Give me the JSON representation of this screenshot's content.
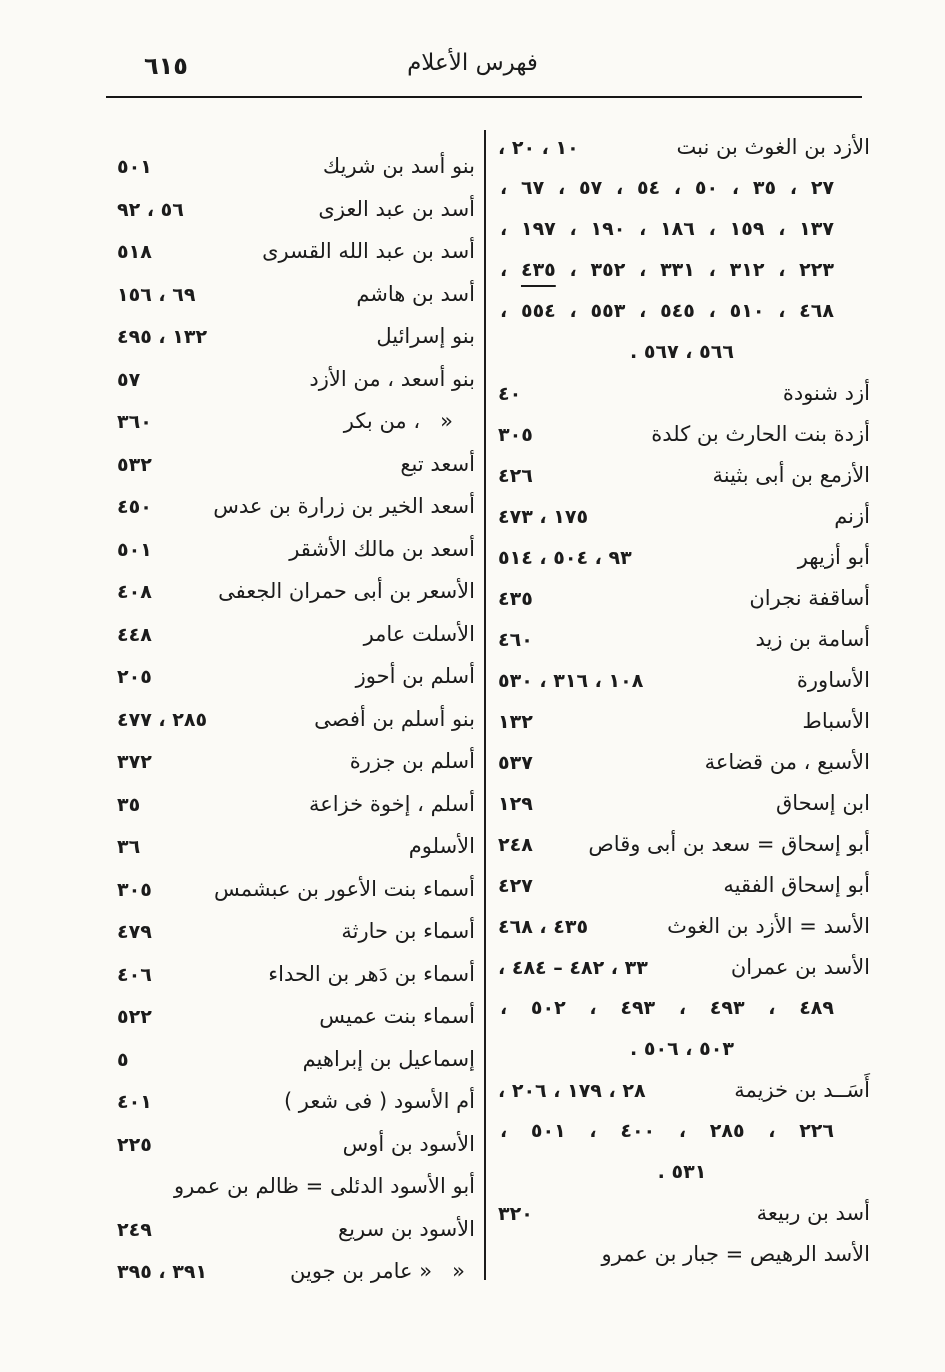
{
  "page": {
    "number": "٦١٥",
    "title": "فهرس الأعلام"
  },
  "index": {
    "right_column": [
      {
        "name": "الأزد بن الغوث بن نبت",
        "pages": "١٠ ، ٢٠ ،"
      },
      {
        "numbers": "٢٧ ، ٣٥ ، ٥٠ ، ٥٤ ، ٥٧ ، ٦٧ ،"
      },
      {
        "numbers": "١٣٧ ، ١٥٩ ، ١٨٦ ، ١٩٠ ، ١٩٧ ،"
      },
      {
        "segments": [
          {
            "t": "٢٢٣ ، ٣١٢ ، ٣٣١ ، ٣٥٢ ، "
          },
          {
            "t": "٤٣٥",
            "u": true
          },
          {
            "t": " ،"
          }
        ]
      },
      {
        "numbers": "٤٦٨ ، ٥١٠ ، ٥٤٥ ، ٥٥٣ ، ٥٥٤ ،"
      },
      {
        "numbers_end": "٥٦٦ ، ٥٦٧ ."
      },
      {
        "name": "أزد شنودة",
        "pages": "٤٠"
      },
      {
        "name": "أزدة بنت الحارث بن كلدة",
        "pages": "٣٠٥"
      },
      {
        "name": "الأزمع بن أبى بثينة",
        "pages": "٤٢٦"
      },
      {
        "name": "أزنم",
        "pages": "١٧٥ ، ٤٧٣"
      },
      {
        "name": "أبو أزيهر",
        "pages": "٩٣ ، ٥٠٤ ، ٥١٤"
      },
      {
        "name": "أساقفة نجران",
        "pages": "٤٣٥"
      },
      {
        "name": "أسامة بن زيد",
        "pages": "٤٦٠"
      },
      {
        "name": "الأساورة",
        "pages": "١٠٨ ، ٣١٦ ، ٥٣٠"
      },
      {
        "name": "الأسباط",
        "pages": "١٣٢"
      },
      {
        "name": "الأسبع ، من قضاعة",
        "pages": "٥٣٧"
      },
      {
        "name": "ابن إسحاق",
        "pages": "١٢٩"
      },
      {
        "name": "أبو إسحاق = سعد بن أبى وقاص",
        "pages": "٢٤٨"
      },
      {
        "name": "أبو إسحاق الفقيه",
        "pages": "٤٢٧"
      },
      {
        "name": "الأسد = الأزد بن الغوث",
        "pages": "٤٣٥ ، ٤٦٨"
      },
      {
        "name": "الأسد بن عمران",
        "pages": "٣٣ ، ٤٨٢ – ٤٨٤ ،"
      },
      {
        "numbers": "٤٨٩ ، ٤٩٣ ، ٤٩٣ ، ٥٠٢ ،"
      },
      {
        "numbers_end": "٥٠٣ ، ٥٠٦ ."
      },
      {
        "name": "أَسَــد بن خزيمة",
        "pages": "٢٨ ، ١٧٩ ، ٢٠٦ ،"
      },
      {
        "numbers": "٢٢٦ ، ٢٨٥ ، ٤٠٠ ، ٥٠١ ،"
      },
      {
        "numbers_end": "٥٣١ ."
      },
      {
        "name": "أسد بن ربيعة",
        "pages": "٣٢٠"
      },
      {
        "name": "الأسد الرهيص = جبار بن عمرو",
        "pages": ""
      }
    ],
    "left_column": [
      {
        "name": "بنو أسد بن شريك",
        "pages": "٥٠١"
      },
      {
        "name": "أسد بن عبد العزى",
        "pages": "٥٦ ، ٩٢"
      },
      {
        "name": "أسد بن عبد الله القسرى",
        "pages": "٥١٨"
      },
      {
        "name": "أسد بن هاشم",
        "pages": "٦٩ ، ١٥٦"
      },
      {
        "name": "بنو إسرائيل",
        "pages": "١٣٢ ، ٤٩٥"
      },
      {
        "name": "بنو أسعد ، من الأزد",
        "pages": "٥٧"
      },
      {
        "name": "«   ، من بكر",
        "pages": "٣٦٠",
        "indent": 22
      },
      {
        "name": "أسعد تبع",
        "pages": "٥٣٢"
      },
      {
        "name": "أسعد الخير بن زرارة بن عدس",
        "pages": "٤٥٠"
      },
      {
        "name": "أسعد بن مالك الأشقر",
        "pages": "٥٠١"
      },
      {
        "name": "الأسعر بن أبى حمران الجعفى",
        "pages": "٤٠٨"
      },
      {
        "name": "الأسلت عامر",
        "pages": "٤٤٨"
      },
      {
        "name": "أسلم بن أحوز",
        "pages": "٢٠٥"
      },
      {
        "name": "بنو أسلم بن أفصى",
        "pages": "٢٨٥ ، ٤٧٧"
      },
      {
        "name": "أسلم بن جزرة",
        "pages": "٣٧٢"
      },
      {
        "name": "أسلم ، إخوة خزاعة",
        "pages": "٣٥"
      },
      {
        "name": "الأسلوم",
        "pages": "٣٦"
      },
      {
        "name": "أسماء بنت الأعور بن عبشمس",
        "pages": "٣٠٥"
      },
      {
        "name": "أسماء بن حارثة",
        "pages": "٤٧٩"
      },
      {
        "name": "أسماء بن دَهر بن الحداء",
        "pages": "٤٠٦"
      },
      {
        "name": "أسماء بنت عميس",
        "pages": "٥٢٢"
      },
      {
        "name": "إسماعيل بن إبراهيم",
        "pages": "٥"
      },
      {
        "name": "أم الأسود ( فى شعر )",
        "pages": "٤٠١"
      },
      {
        "name": "الأسود بن أوس",
        "pages": "٢٢٥"
      },
      {
        "name": "أبو الأسود الدئلى = ظالم بن عمرو",
        "pages": ""
      },
      {
        "name": "الأسود بن سريع",
        "pages": "٢٤٩"
      },
      {
        "name": "«   « عامر بن جوين",
        "pages": "٣٩١ ، ٣٩٥",
        "indent": 10
      }
    ]
  }
}
